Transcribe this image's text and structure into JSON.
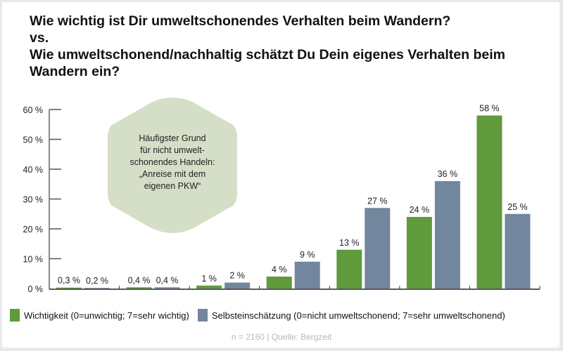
{
  "title_lines": [
    "Wie wichtig ist Dir umweltschonendes Verhalten beim Wandern?",
    "vs.",
    "Wie umweltschonend/nachhaltig schätzt Du Dein eigenes Verhalten beim",
    "Wandern ein?"
  ],
  "callout": {
    "lines": [
      "Häufigster Grund",
      "für nicht umwelt-",
      "schonendes Handeln:",
      "„Anreise mit dem",
      "eigenen PKW“"
    ],
    "color": "#d5dfc7"
  },
  "chart_data": {
    "type": "bar",
    "categories": [
      "",
      "",
      "",
      "",
      "",
      "",
      ""
    ],
    "ylim": [
      0,
      60
    ],
    "yticks": [
      "0 %",
      "10 %",
      "20 %",
      "30 %",
      "40 %",
      "50 %",
      "60 %"
    ],
    "ytick_values": [
      0,
      10,
      20,
      30,
      40,
      50,
      60
    ],
    "grid": false,
    "legend_position": "bottom",
    "series": [
      {
        "name": "Wichtigkeit (0=unwichtig; 7=sehr wichtig)",
        "color": "#5f9a3d",
        "values": [
          0.3,
          0.4,
          1,
          4,
          13,
          24,
          58
        ],
        "labels": [
          "0,3 %",
          "0,4 %",
          "1 %",
          "4 %",
          "13 %",
          "24 %",
          "58 %"
        ]
      },
      {
        "name": "Selbsteinschätzung (0=nicht umweltschonend; 7=sehr umweltschonend)",
        "color": "#72869d",
        "values": [
          0.2,
          0.4,
          2,
          9,
          27,
          36,
          25
        ],
        "labels": [
          "0,2 %",
          "0,4 %",
          "2 %",
          "9 %",
          "27 %",
          "36 %",
          "25 %"
        ]
      }
    ]
  },
  "source": "n = 2160 | Quelle: Bergzeit"
}
